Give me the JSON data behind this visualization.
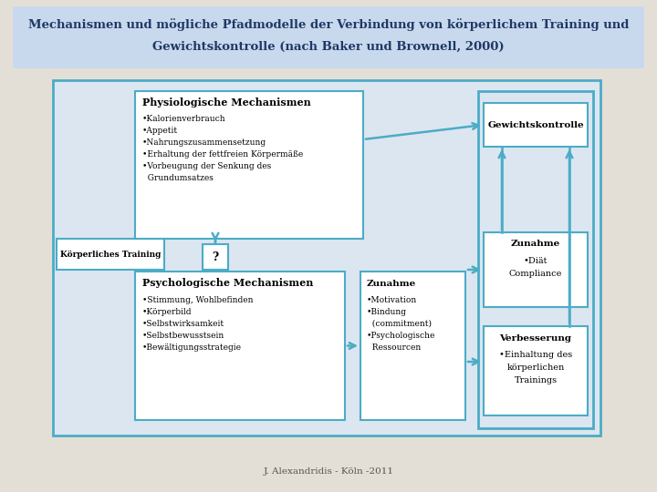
{
  "title_line1": "Mechanismen und mögliche Pfadmodelle der Verbindung von körperlichem Training und",
  "title_line2": "Gewichtskontrolle (nach Baker und Brownell, 2000)",
  "title_bg": "#c8d9ee",
  "bg_color": "#e4dfd6",
  "box_color": "#4bacc6",
  "box_fill": "#ffffff",
  "outer_box_fill": "#dce6f1",
  "footer": "J. Alexandridis - Köln -2011",
  "phys_title": "Physiologische Mechanismen",
  "phys_items": [
    "•Kalorienverbrauch",
    "•Appetit",
    "•Nahrungszusammensetzung",
    "•Erhaltung der fettfreien Körpermäße",
    "•Vorbeugung der Senkung des",
    "  Grundumsatzes"
  ],
  "psych_title": "Psychologische Mechanismen",
  "psych_items": [
    "•Stimmung, Wohlbefinden",
    "•Körperbild",
    "•Selbstwirksamkeit",
    "•Selbstbewusstsein",
    "•Bewältigungsstrategie"
  ],
  "training_label": "Körperliches Training",
  "question_mark": "?",
  "zunahme_title": "Zunahme",
  "zunahme_items": [
    "•Motivation",
    "•Bindung",
    "  (commitment)",
    "•Psychologische",
    "  Ressourcen"
  ],
  "gewicht_label": "Gewichtskontrolle",
  "zunahme2_title": "Zunahme",
  "zunahme2_items": [
    "•Diät",
    "Compliance"
  ],
  "verbesserung_title": "Verbesserung",
  "verbesserung_items": [
    "•Einhaltung des",
    "körperlichen",
    "Trainings"
  ]
}
